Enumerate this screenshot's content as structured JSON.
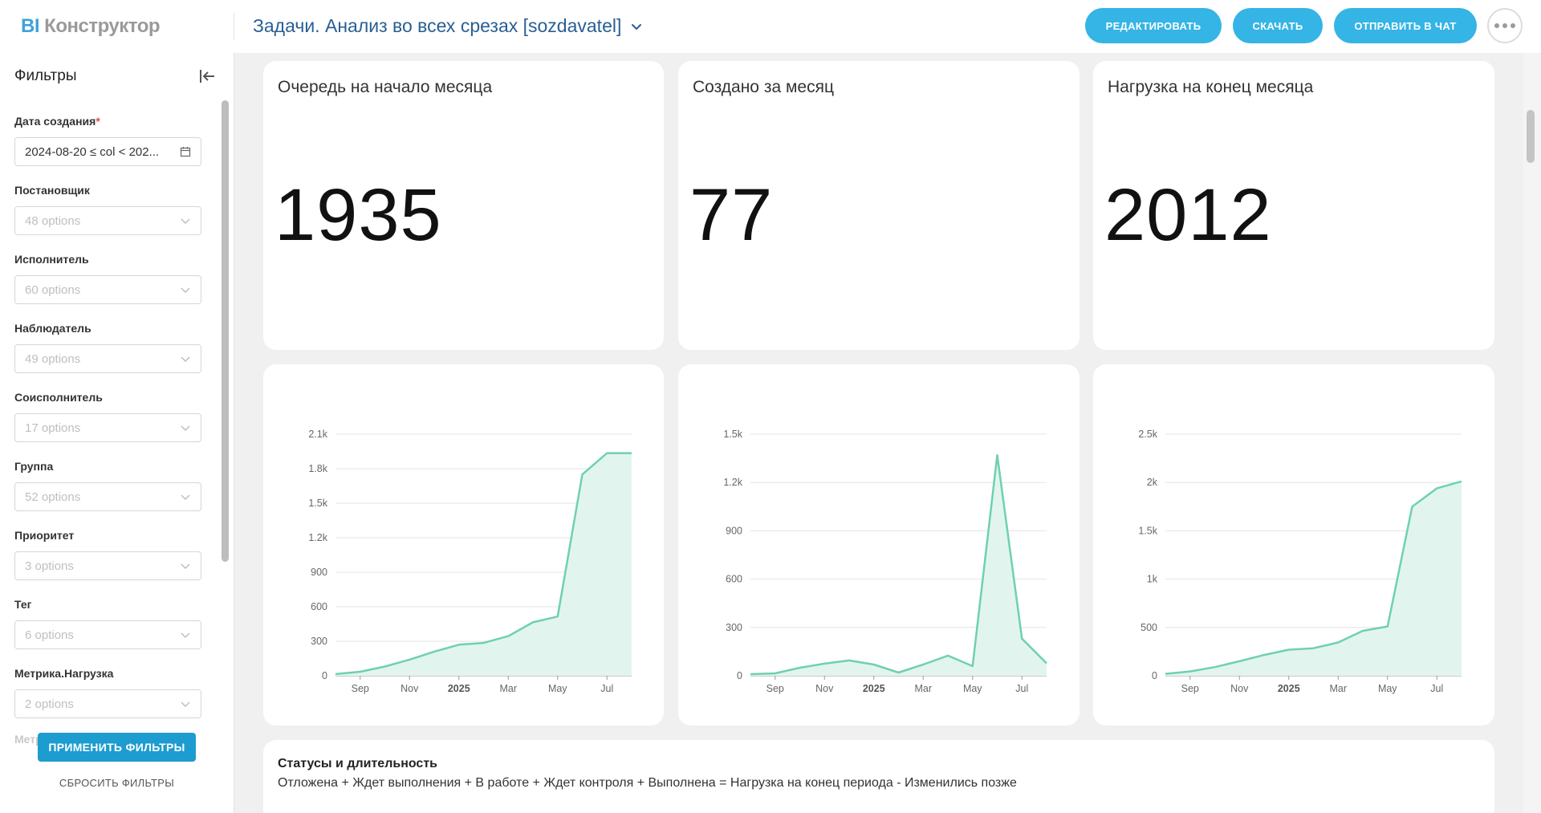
{
  "header": {
    "logo_bi": "BI",
    "logo_rest": "Конструктор",
    "dashboard_title": "Задачи. Анализ во всех срезах [sozdavatel]",
    "buttons": {
      "edit": "РЕДАКТИРОВАТЬ",
      "download": "СКАЧАТЬ",
      "send_to_chat": "ОТПРАВИТЬ В ЧАТ"
    }
  },
  "sidebar": {
    "title": "Фильтры",
    "filters": [
      {
        "label": "Дата создания",
        "required": "*",
        "value": "2024-08-20 ≤ col < 202..."
      },
      {
        "label": "Постановщик",
        "value": "48 options"
      },
      {
        "label": "Исполнитель",
        "value": "60 options"
      },
      {
        "label": "Наблюдатель",
        "value": "49 options"
      },
      {
        "label": "Соисполнитель",
        "value": "17 options"
      },
      {
        "label": "Группа",
        "value": "52 options"
      },
      {
        "label": "Приоритет",
        "value": "3 options"
      },
      {
        "label": "Тег",
        "value": "6 options"
      },
      {
        "label": "Метрика.Нагрузка",
        "value": "2 options"
      }
    ],
    "partial_label": "Метрика",
    "apply_label": "ПРИМЕНИТЬ ФИЛЬТРЫ",
    "reset_label": "СБРОСИТЬ ФИЛЬТРЫ"
  },
  "kpis": [
    {
      "title": "Очередь на начало месяца",
      "value": "1935"
    },
    {
      "title": "Создано за месяц",
      "value": "77"
    },
    {
      "title": "Нагрузка на конец месяца",
      "value": "2012"
    }
  ],
  "status_section": {
    "title": "Статусы и длительность",
    "formula": "Отложена + Ждет выполнения + В работе + Ждет контроля + Выполнена = Нагрузка на конец периода - Изменились позже"
  },
  "colors": {
    "accent": "#35b4e6",
    "chart_line": "#6fd1ad",
    "chart_fill": "#e1f5ee"
  },
  "chart_data": [
    {
      "type": "area",
      "x": [
        "2024-08",
        "2024-09",
        "2024-10",
        "2024-11",
        "2024-12",
        "2025-01",
        "2025-02",
        "2025-03",
        "2025-04",
        "2025-05",
        "2025-06",
        "2025-07",
        "2025-08"
      ],
      "x_tick_labels": [
        "Sep",
        "Nov",
        "2025",
        "Mar",
        "May",
        "Jul"
      ],
      "y_tick_labels": [
        "0",
        "300",
        "600",
        "900",
        "1.2k",
        "1.5k",
        "1.8k",
        "2.1k"
      ],
      "ylim": [
        0,
        2100
      ],
      "series": [
        {
          "values": [
            15,
            35,
            80,
            140,
            210,
            270,
            285,
            345,
            465,
            515,
            1750,
            1935,
            1935
          ]
        }
      ]
    },
    {
      "type": "area",
      "x": [
        "2024-08",
        "2024-09",
        "2024-10",
        "2024-11",
        "2024-12",
        "2025-01",
        "2025-02",
        "2025-03",
        "2025-04",
        "2025-05",
        "2025-06",
        "2025-07",
        "2025-08"
      ],
      "x_tick_labels": [
        "Sep",
        "Nov",
        "2025",
        "Mar",
        "May",
        "Jul"
      ],
      "y_tick_labels": [
        "0",
        "300",
        "600",
        "900",
        "1.2k",
        "1.5k"
      ],
      "ylim": [
        0,
        1500
      ],
      "series": [
        {
          "values": [
            10,
            15,
            50,
            75,
            95,
            70,
            20,
            70,
            125,
            60,
            1370,
            230,
            77
          ]
        }
      ]
    },
    {
      "type": "area",
      "x": [
        "2024-08",
        "2024-09",
        "2024-10",
        "2024-11",
        "2024-12",
        "2025-01",
        "2025-02",
        "2025-03",
        "2025-04",
        "2025-05",
        "2025-06",
        "2025-07",
        "2025-08"
      ],
      "x_tick_labels": [
        "Sep",
        "Nov",
        "2025",
        "Mar",
        "May",
        "Jul"
      ],
      "y_tick_labels": [
        "0",
        "500",
        "1k",
        "1.5k",
        "2k",
        "2.5k"
      ],
      "ylim": [
        0,
        2500
      ],
      "series": [
        {
          "values": [
            20,
            45,
            90,
            150,
            215,
            270,
            285,
            345,
            465,
            510,
            1750,
            1940,
            2012
          ]
        }
      ]
    }
  ]
}
